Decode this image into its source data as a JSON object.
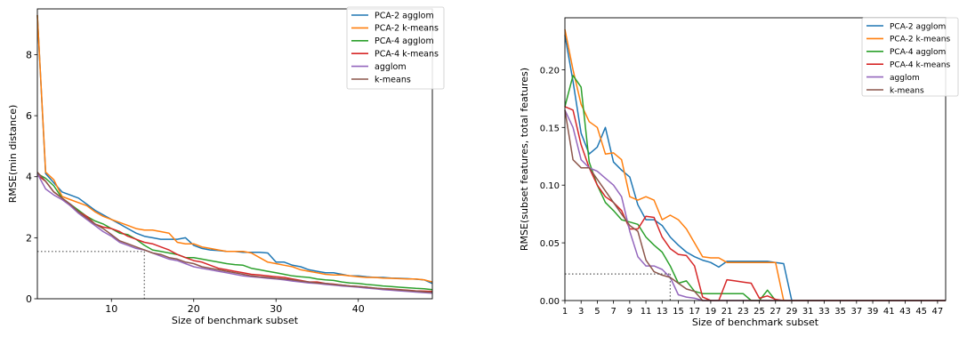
{
  "chart_data": [
    {
      "type": "line",
      "xlabel": "Size of benchmark subset",
      "ylabel": "RMSE(min distance)",
      "xlim": [
        1,
        49
      ],
      "ylim": [
        0,
        9.5
      ],
      "xticks": [
        10,
        20,
        30,
        40
      ],
      "yticks": [
        0,
        2,
        4,
        6,
        8
      ],
      "legend_position": "top-right",
      "reference": {
        "x": 14,
        "y": 1.55
      },
      "series": [
        {
          "name": "PCA-2 agglom",
          "color": "#1f77b4",
          "x": [
            1,
            2,
            3,
            4,
            5,
            6,
            7,
            8,
            9,
            10,
            11,
            12,
            13,
            14,
            15,
            16,
            17,
            18,
            19,
            20,
            21,
            22,
            23,
            24,
            25,
            26,
            27,
            28,
            29,
            30,
            31,
            32,
            33,
            34,
            35,
            36,
            37,
            38,
            39,
            40,
            41,
            42,
            43,
            44,
            45,
            46,
            47,
            48,
            49
          ],
          "y": [
            9.3,
            4.1,
            3.8,
            3.5,
            3.4,
            3.3,
            3.1,
            2.9,
            2.75,
            2.6,
            2.45,
            2.3,
            2.15,
            2.05,
            2.0,
            1.95,
            1.95,
            1.95,
            2.0,
            1.75,
            1.65,
            1.6,
            1.58,
            1.55,
            1.55,
            1.52,
            1.52,
            1.52,
            1.5,
            1.2,
            1.2,
            1.1,
            1.05,
            0.95,
            0.9,
            0.85,
            0.85,
            0.8,
            0.75,
            0.75,
            0.72,
            0.7,
            0.7,
            0.68,
            0.67,
            0.66,
            0.64,
            0.62,
            0.5
          ]
        },
        {
          "name": "PCA-2 k-means",
          "color": "#ff7f0e",
          "x": [
            1,
            2,
            3,
            4,
            5,
            6,
            7,
            8,
            9,
            10,
            11,
            12,
            13,
            14,
            15,
            16,
            17,
            18,
            19,
            20,
            21,
            22,
            23,
            24,
            25,
            26,
            27,
            28,
            29,
            30,
            31,
            32,
            33,
            34,
            35,
            36,
            37,
            38,
            39,
            40,
            41,
            42,
            43,
            44,
            45,
            46,
            47,
            48,
            49
          ],
          "y": [
            9.3,
            4.15,
            3.9,
            3.35,
            3.25,
            3.15,
            3.05,
            2.85,
            2.7,
            2.6,
            2.5,
            2.4,
            2.3,
            2.25,
            2.25,
            2.2,
            2.15,
            1.85,
            1.8,
            1.8,
            1.7,
            1.65,
            1.6,
            1.55,
            1.55,
            1.55,
            1.5,
            1.35,
            1.2,
            1.15,
            1.1,
            1.05,
            0.95,
            0.9,
            0.85,
            0.8,
            0.78,
            0.78,
            0.75,
            0.72,
            0.7,
            0.7,
            0.68,
            0.67,
            0.66,
            0.65,
            0.65,
            0.62,
            0.55
          ]
        },
        {
          "name": "PCA-4 agglom",
          "color": "#2ca02c",
          "x": [
            1,
            2,
            3,
            4,
            5,
            6,
            7,
            8,
            9,
            10,
            11,
            12,
            13,
            14,
            15,
            16,
            17,
            18,
            19,
            20,
            21,
            22,
            23,
            24,
            25,
            26,
            27,
            28,
            29,
            30,
            31,
            32,
            33,
            34,
            35,
            36,
            37,
            38,
            39,
            40,
            41,
            42,
            43,
            44,
            45,
            46,
            47,
            48,
            49
          ],
          "y": [
            4.1,
            3.95,
            3.7,
            3.3,
            3.1,
            2.9,
            2.7,
            2.55,
            2.45,
            2.3,
            2.15,
            2.1,
            1.95,
            1.75,
            1.6,
            1.55,
            1.5,
            1.45,
            1.35,
            1.35,
            1.3,
            1.25,
            1.2,
            1.15,
            1.12,
            1.1,
            1.0,
            0.95,
            0.9,
            0.85,
            0.8,
            0.75,
            0.72,
            0.7,
            0.65,
            0.62,
            0.6,
            0.55,
            0.52,
            0.5,
            0.47,
            0.45,
            0.42,
            0.4,
            0.38,
            0.36,
            0.34,
            0.33,
            0.3
          ]
        },
        {
          "name": "PCA-4 k-means",
          "color": "#d62728",
          "x": [
            1,
            2,
            3,
            4,
            5,
            6,
            7,
            8,
            9,
            10,
            11,
            12,
            13,
            14,
            15,
            16,
            17,
            18,
            19,
            20,
            21,
            22,
            23,
            24,
            25,
            26,
            27,
            28,
            29,
            30,
            31,
            32,
            33,
            34,
            35,
            36,
            37,
            38,
            39,
            40,
            41,
            42,
            43,
            44,
            45,
            46,
            47,
            48,
            49
          ],
          "y": [
            4.05,
            3.85,
            3.5,
            3.3,
            3.05,
            2.85,
            2.7,
            2.45,
            2.35,
            2.3,
            2.2,
            2.05,
            1.95,
            1.85,
            1.8,
            1.7,
            1.6,
            1.45,
            1.35,
            1.25,
            1.2,
            1.1,
            1.0,
            0.95,
            0.9,
            0.85,
            0.8,
            0.78,
            0.75,
            0.72,
            0.7,
            0.65,
            0.6,
            0.55,
            0.55,
            0.5,
            0.48,
            0.45,
            0.42,
            0.4,
            0.38,
            0.35,
            0.33,
            0.32,
            0.3,
            0.28,
            0.26,
            0.25,
            0.24
          ]
        },
        {
          "name": "agglom",
          "color": "#9467bd",
          "x": [
            1,
            2,
            3,
            4,
            5,
            6,
            7,
            8,
            9,
            10,
            11,
            12,
            13,
            14,
            15,
            16,
            17,
            18,
            19,
            20,
            21,
            22,
            23,
            24,
            25,
            26,
            27,
            28,
            29,
            30,
            31,
            32,
            33,
            34,
            35,
            36,
            37,
            38,
            39,
            40,
            41,
            42,
            43,
            44,
            45,
            46,
            47,
            48,
            49
          ],
          "y": [
            4.1,
            3.6,
            3.4,
            3.25,
            3.05,
            2.8,
            2.6,
            2.4,
            2.2,
            2.05,
            1.85,
            1.75,
            1.65,
            1.6,
            1.5,
            1.4,
            1.3,
            1.25,
            1.15,
            1.05,
            1.0,
            0.95,
            0.9,
            0.85,
            0.8,
            0.75,
            0.72,
            0.7,
            0.67,
            0.65,
            0.62,
            0.58,
            0.55,
            0.52,
            0.5,
            0.47,
            0.45,
            0.42,
            0.4,
            0.38,
            0.35,
            0.33,
            0.3,
            0.28,
            0.26,
            0.24,
            0.22,
            0.2,
            0.18
          ]
        },
        {
          "name": "k-means",
          "color": "#8c564b",
          "x": [
            1,
            2,
            3,
            4,
            5,
            6,
            7,
            8,
            9,
            10,
            11,
            12,
            13,
            14,
            15,
            16,
            17,
            18,
            19,
            20,
            21,
            22,
            23,
            24,
            25,
            26,
            27,
            28,
            29,
            30,
            31,
            32,
            33,
            34,
            35,
            36,
            37,
            38,
            39,
            40,
            41,
            42,
            43,
            44,
            45,
            46,
            47,
            48,
            49
          ],
          "y": [
            4.15,
            3.85,
            3.5,
            3.3,
            3.1,
            2.85,
            2.65,
            2.45,
            2.3,
            2.1,
            1.9,
            1.8,
            1.7,
            1.6,
            1.5,
            1.45,
            1.35,
            1.3,
            1.2,
            1.15,
            1.05,
            1.0,
            0.95,
            0.9,
            0.85,
            0.8,
            0.75,
            0.72,
            0.7,
            0.67,
            0.65,
            0.62,
            0.58,
            0.55,
            0.52,
            0.5,
            0.47,
            0.45,
            0.42,
            0.4,
            0.38,
            0.35,
            0.33,
            0.31,
            0.29,
            0.27,
            0.25,
            0.23,
            0.21
          ]
        }
      ]
    },
    {
      "type": "line",
      "xlabel": "Size of benchmark subset",
      "ylabel": "RMSE(subset features, total features)",
      "xlim": [
        1,
        48
      ],
      "ylim": [
        0,
        0.245
      ],
      "xticks": [
        1,
        3,
        5,
        7,
        9,
        11,
        13,
        15,
        17,
        19,
        21,
        23,
        25,
        27,
        29,
        31,
        33,
        35,
        37,
        39,
        41,
        43,
        45,
        47
      ],
      "yticks": [
        0.0,
        0.05,
        0.1,
        0.15,
        0.2
      ],
      "ytick_labels": [
        "0.00",
        "0.05",
        "0.10",
        "0.15",
        "0.20"
      ],
      "legend_position": "top-right",
      "reference": {
        "x": 14,
        "y": 0.023
      },
      "series": [
        {
          "name": "PCA-2 agglom",
          "color": "#1f77b4",
          "x": [
            1,
            2,
            3,
            4,
            5,
            6,
            7,
            8,
            9,
            10,
            11,
            12,
            13,
            14,
            15,
            16,
            17,
            18,
            19,
            20,
            21,
            22,
            23,
            24,
            25,
            26,
            27,
            28,
            29,
            30,
            48
          ],
          "y": [
            0.23,
            0.19,
            0.145,
            0.127,
            0.133,
            0.15,
            0.12,
            0.113,
            0.107,
            0.083,
            0.07,
            0.07,
            0.065,
            0.055,
            0.048,
            0.042,
            0.038,
            0.035,
            0.033,
            0.029,
            0.034,
            0.034,
            0.034,
            0.034,
            0.034,
            0.034,
            0.033,
            0.032,
            0.0,
            0.0,
            0.0
          ]
        },
        {
          "name": "PCA-2 k-means",
          "color": "#ff7f0e",
          "x": [
            1,
            2,
            3,
            4,
            5,
            6,
            7,
            8,
            9,
            10,
            11,
            12,
            13,
            14,
            15,
            16,
            17,
            18,
            19,
            20,
            21,
            22,
            23,
            24,
            25,
            26,
            27,
            28,
            29,
            48
          ],
          "y": [
            0.235,
            0.2,
            0.17,
            0.155,
            0.15,
            0.127,
            0.128,
            0.122,
            0.09,
            0.087,
            0.09,
            0.087,
            0.07,
            0.074,
            0.07,
            0.062,
            0.05,
            0.038,
            0.037,
            0.037,
            0.033,
            0.033,
            0.033,
            0.033,
            0.033,
            0.033,
            0.033,
            0.0,
            0.0,
            0.0
          ]
        },
        {
          "name": "PCA-4 agglom",
          "color": "#2ca02c",
          "x": [
            1,
            2,
            3,
            4,
            5,
            6,
            7,
            8,
            9,
            10,
            11,
            12,
            13,
            14,
            15,
            16,
            17,
            18,
            19,
            20,
            21,
            22,
            23,
            24,
            25,
            26,
            27,
            28,
            48
          ],
          "y": [
            0.168,
            0.195,
            0.185,
            0.12,
            0.1,
            0.085,
            0.078,
            0.07,
            0.068,
            0.066,
            0.055,
            0.048,
            0.042,
            0.03,
            0.015,
            0.017,
            0.008,
            0.006,
            0.006,
            0.006,
            0.006,
            0.006,
            0.006,
            0.0,
            0.0,
            0.009,
            0.0,
            0.0,
            0.0
          ]
        },
        {
          "name": "PCA-4 k-means",
          "color": "#d62728",
          "x": [
            1,
            2,
            3,
            4,
            5,
            6,
            7,
            8,
            9,
            10,
            11,
            12,
            13,
            14,
            15,
            16,
            17,
            18,
            19,
            20,
            21,
            22,
            23,
            24,
            25,
            26,
            27,
            28,
            48
          ],
          "y": [
            0.168,
            0.165,
            0.135,
            0.115,
            0.1,
            0.09,
            0.085,
            0.078,
            0.062,
            0.062,
            0.073,
            0.072,
            0.055,
            0.045,
            0.04,
            0.039,
            0.03,
            0.003,
            0.0,
            0.0,
            0.018,
            0.017,
            0.016,
            0.015,
            0.002,
            0.004,
            0.001,
            0.0,
            0.0
          ]
        },
        {
          "name": "agglom",
          "color": "#9467bd",
          "x": [
            1,
            2,
            3,
            4,
            5,
            6,
            7,
            8,
            9,
            10,
            11,
            12,
            13,
            14,
            15,
            16,
            17,
            18,
            48
          ],
          "y": [
            0.165,
            0.15,
            0.122,
            0.115,
            0.112,
            0.106,
            0.1,
            0.09,
            0.06,
            0.038,
            0.03,
            0.03,
            0.027,
            0.02,
            0.005,
            0.003,
            0.002,
            0.0,
            0.0
          ]
        },
        {
          "name": "k-means",
          "color": "#8c564b",
          "x": [
            1,
            2,
            3,
            4,
            5,
            6,
            7,
            8,
            9,
            10,
            11,
            12,
            13,
            14,
            15,
            16,
            17,
            18,
            48
          ],
          "y": [
            0.165,
            0.122,
            0.115,
            0.115,
            0.105,
            0.095,
            0.085,
            0.075,
            0.065,
            0.06,
            0.035,
            0.025,
            0.022,
            0.02,
            0.015,
            0.01,
            0.008,
            0.0,
            0.0
          ]
        }
      ]
    }
  ]
}
